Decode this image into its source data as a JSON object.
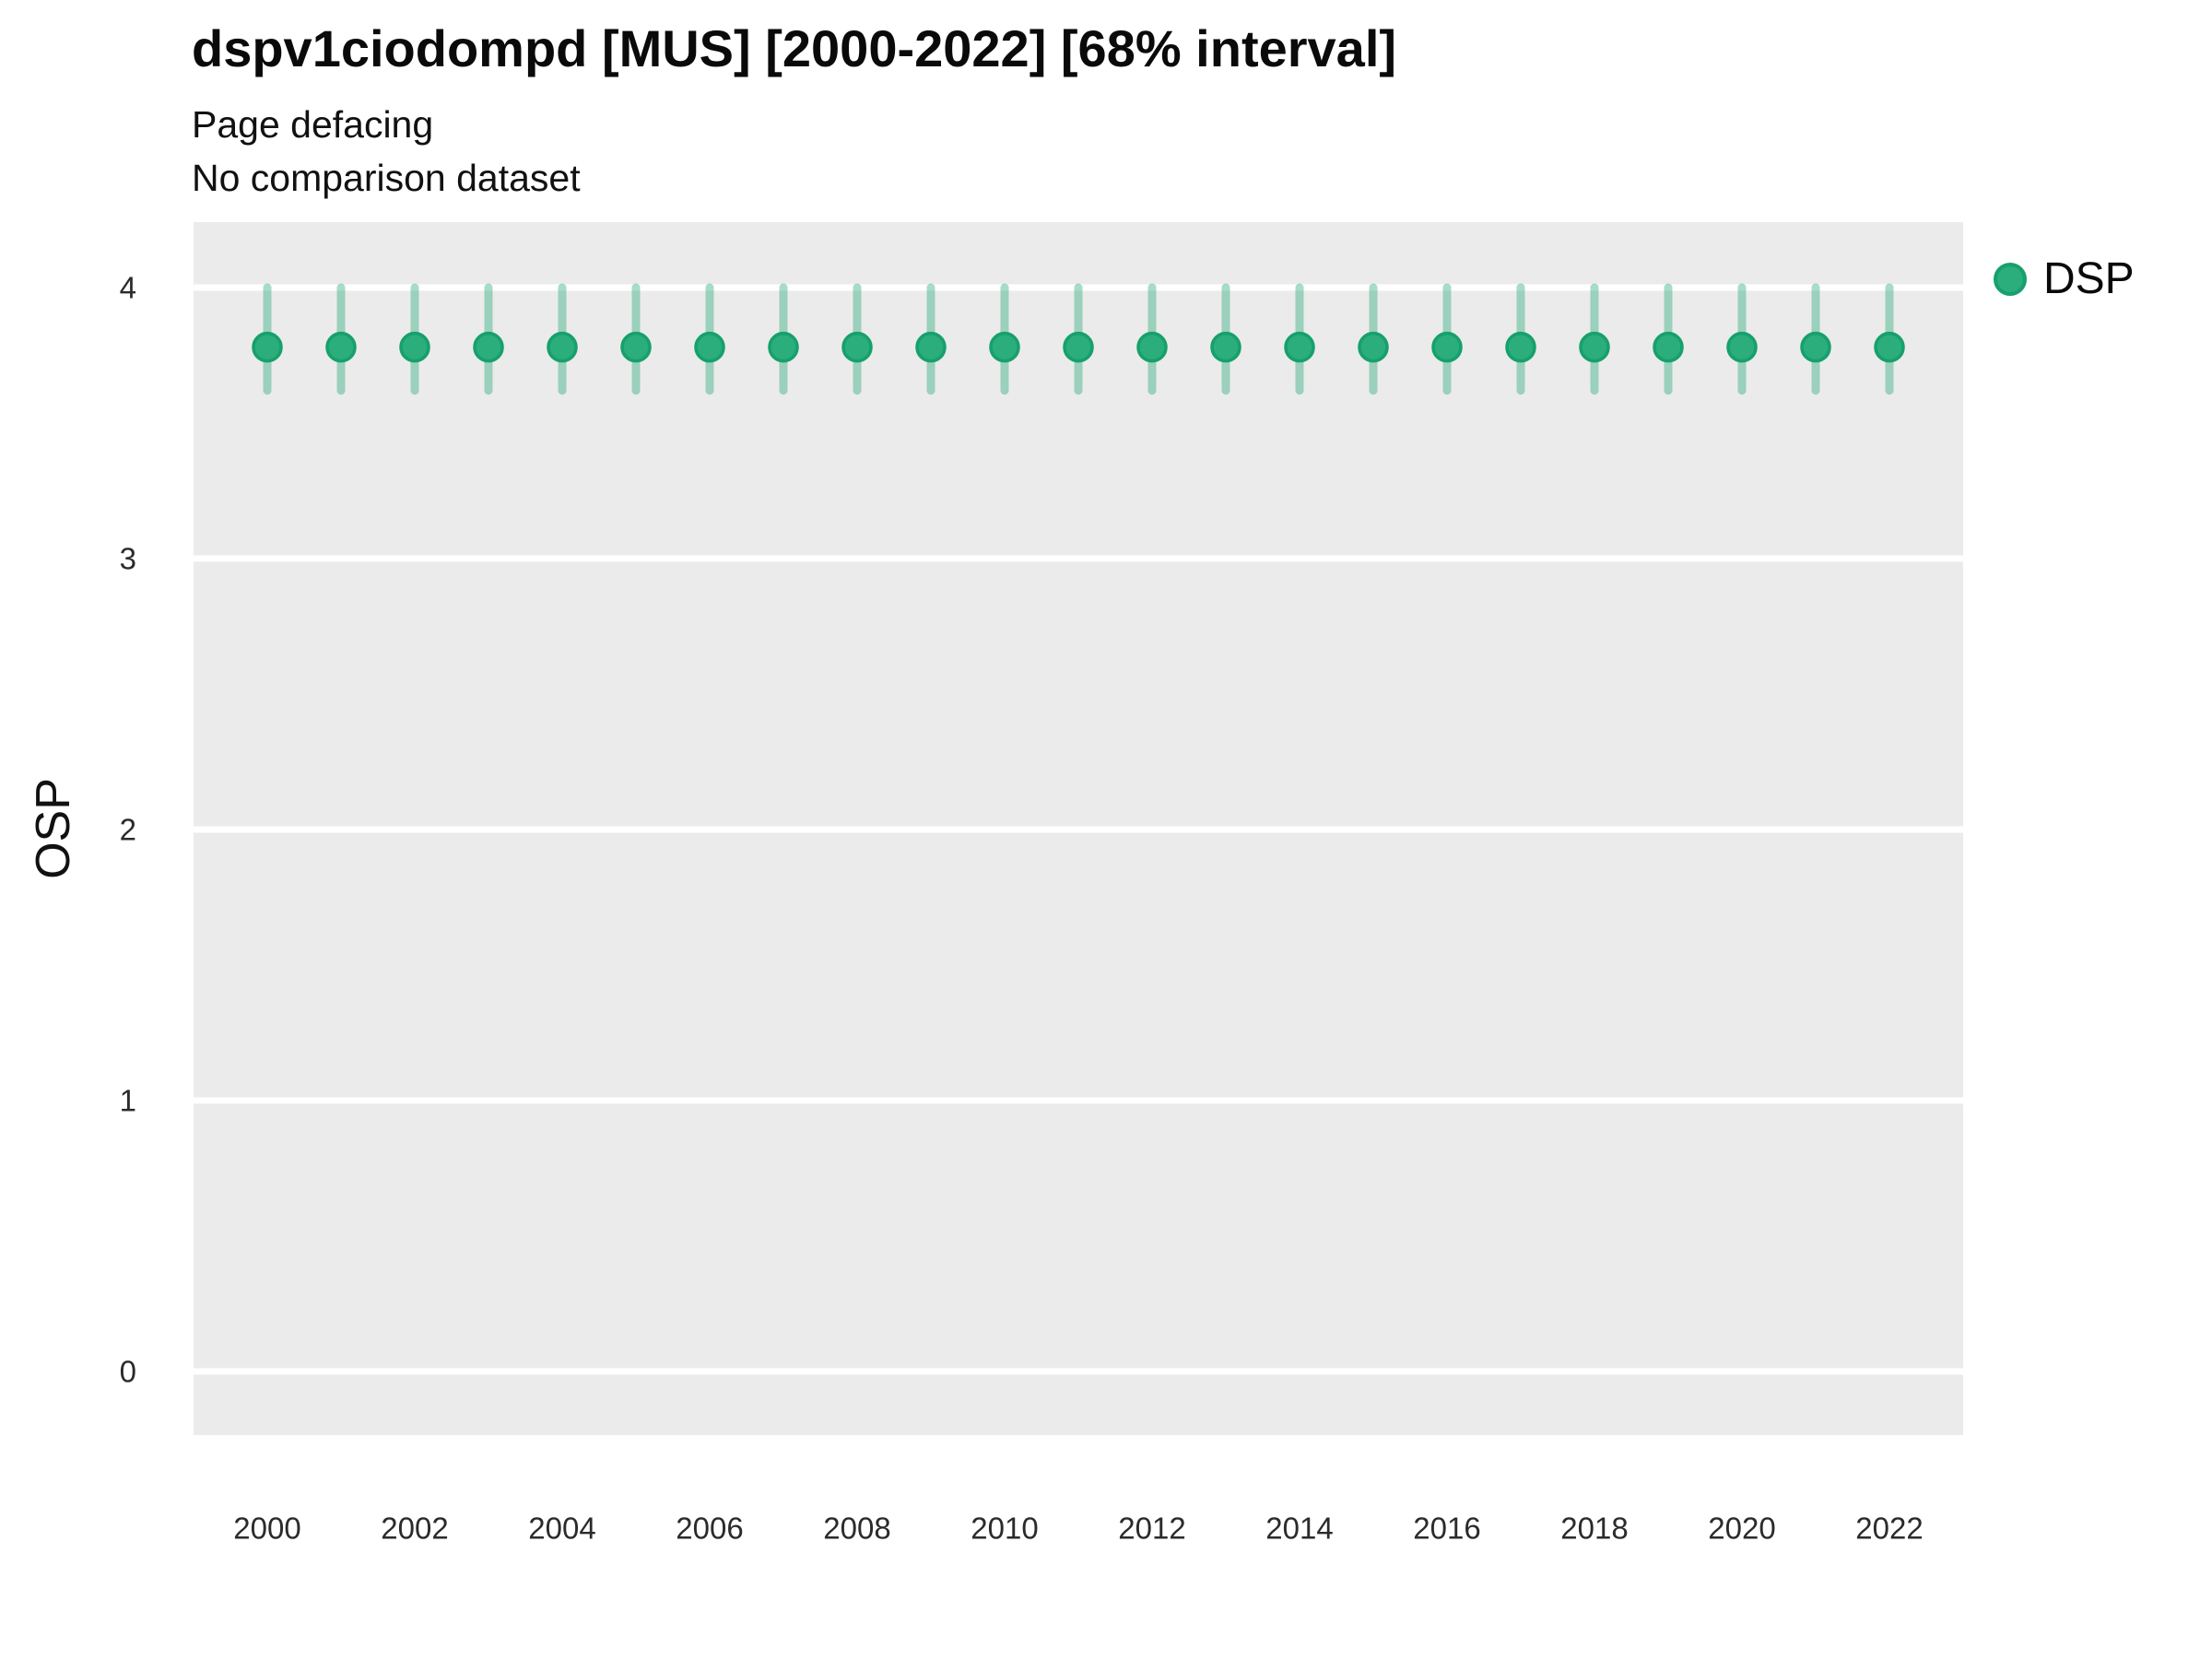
{
  "header": {
    "title": "dspv1ciodompd [MUS] [2000-2022] [68% interval]",
    "subtitle1": "Page defacing",
    "subtitle2": "No comparison dataset"
  },
  "axes": {
    "y_label": "OSP",
    "x_tick_labels": [
      "2000",
      "2002",
      "2004",
      "2006",
      "2008",
      "2010",
      "2012",
      "2014",
      "2016",
      "2018",
      "2020",
      "2022"
    ],
    "y_tick_labels": [
      "0",
      "1",
      "2",
      "3",
      "4"
    ]
  },
  "legend": {
    "items": [
      {
        "label": "DSP",
        "marker": "circle-icon"
      }
    ]
  },
  "chart_data": {
    "type": "scatter",
    "title": "dspv1ciodompd [MUS] [2000-2022] [68% interval]",
    "subtitle": [
      "Page defacing",
      "No comparison dataset"
    ],
    "xlabel": "",
    "ylabel": "OSP",
    "interval_label": "68% interval",
    "xlim": [
      1999,
      2023
    ],
    "ylim": [
      -0.24,
      4.24
    ],
    "x_ticks": [
      2000,
      2002,
      2004,
      2006,
      2008,
      2010,
      2012,
      2014,
      2016,
      2018,
      2020,
      2022
    ],
    "y_ticks": [
      0,
      1,
      2,
      3,
      4
    ],
    "grid": "major-horizontal-only",
    "legend_position": "right-top",
    "series": [
      {
        "name": "DSP",
        "x": [
          2000,
          2001,
          2002,
          2003,
          2004,
          2005,
          2006,
          2007,
          2008,
          2009,
          2010,
          2011,
          2012,
          2013,
          2014,
          2015,
          2016,
          2017,
          2018,
          2019,
          2020,
          2021,
          2022
        ],
        "y": [
          3.78,
          3.78,
          3.78,
          3.78,
          3.78,
          3.78,
          3.78,
          3.78,
          3.78,
          3.78,
          3.78,
          3.78,
          3.78,
          3.78,
          3.78,
          3.78,
          3.78,
          3.78,
          3.78,
          3.78,
          3.78,
          3.78,
          3.78
        ],
        "y_low": [
          3.62,
          3.62,
          3.62,
          3.62,
          3.62,
          3.62,
          3.62,
          3.62,
          3.62,
          3.62,
          3.62,
          3.62,
          3.62,
          3.62,
          3.62,
          3.62,
          3.62,
          3.62,
          3.62,
          3.62,
          3.62,
          3.62,
          3.62
        ],
        "y_high": [
          4.0,
          4.0,
          4.0,
          4.0,
          4.0,
          4.0,
          4.0,
          4.0,
          4.0,
          4.0,
          4.0,
          4.0,
          4.0,
          4.0,
          4.0,
          4.0,
          4.0,
          4.0,
          4.0,
          4.0,
          4.0,
          4.0,
          4.0
        ]
      }
    ],
    "colors": {
      "point_fill": "#2BAD7C",
      "point_stroke": "#16A06C",
      "error_bar": "rgba(43,171,123,0.42)",
      "panel_background": "#EBEBEB",
      "gridline": "#FFFFFF"
    }
  }
}
